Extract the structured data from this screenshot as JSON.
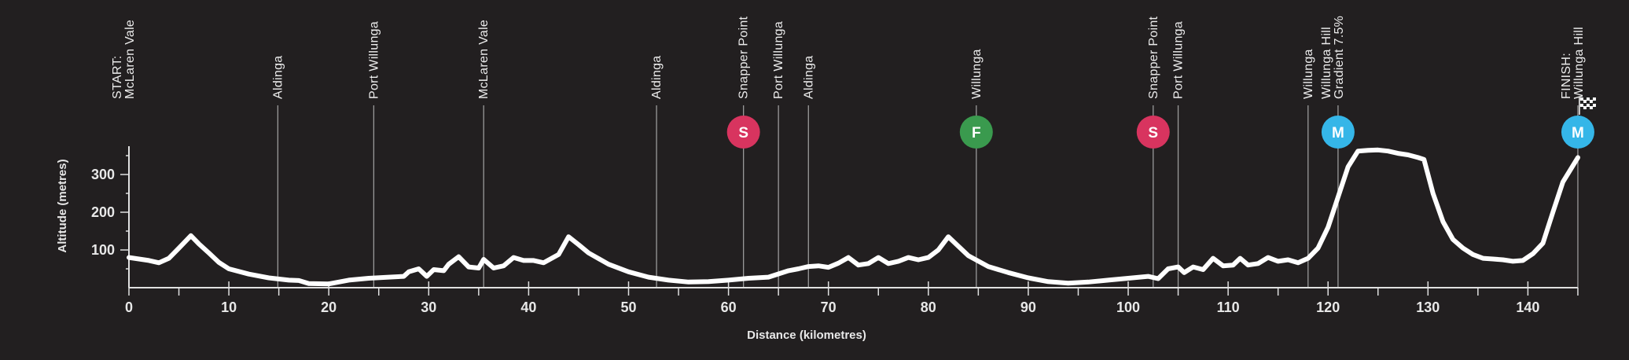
{
  "chart_data": {
    "type": "line",
    "title": "",
    "xlabel": "Distance (kilometres)",
    "ylabel": "Altitude (metres)",
    "xlim": [
      0,
      145
    ],
    "ylim": [
      0,
      375
    ],
    "x_ticks": [
      0,
      10,
      20,
      30,
      40,
      50,
      60,
      70,
      80,
      90,
      100,
      110,
      120,
      130,
      140
    ],
    "y_ticks": [
      100,
      200,
      300
    ],
    "grid": false,
    "colors": {
      "background": "#221f20",
      "line": "#ffffff",
      "axis": "#e0e0e0",
      "sprint": "#d8345f",
      "feed": "#3a9a4e",
      "mountain": "#35b6e8"
    },
    "profile": [
      [
        0,
        80
      ],
      [
        1,
        76
      ],
      [
        2,
        72
      ],
      [
        3,
        66
      ],
      [
        4,
        78
      ],
      [
        5,
        105
      ],
      [
        6.2,
        138
      ],
      [
        7,
        116
      ],
      [
        8,
        92
      ],
      [
        9,
        67
      ],
      [
        10,
        50
      ],
      [
        12,
        36
      ],
      [
        14,
        26
      ],
      [
        16,
        20
      ],
      [
        17,
        19
      ],
      [
        18,
        11
      ],
      [
        20,
        10
      ],
      [
        22,
        20
      ],
      [
        24,
        25
      ],
      [
        26,
        28
      ],
      [
        27.5,
        30
      ],
      [
        28,
        42
      ],
      [
        29,
        50
      ],
      [
        29.8,
        30
      ],
      [
        30.5,
        48
      ],
      [
        31.5,
        45
      ],
      [
        32,
        62
      ],
      [
        33,
        82
      ],
      [
        34,
        55
      ],
      [
        35,
        52
      ],
      [
        35.5,
        75
      ],
      [
        36.5,
        52
      ],
      [
        37.5,
        58
      ],
      [
        38.5,
        80
      ],
      [
        39.5,
        72
      ],
      [
        40.5,
        72
      ],
      [
        41.5,
        66
      ],
      [
        43,
        88
      ],
      [
        44,
        135
      ],
      [
        45,
        114
      ],
      [
        46,
        92
      ],
      [
        48,
        62
      ],
      [
        50,
        42
      ],
      [
        52,
        28
      ],
      [
        54,
        20
      ],
      [
        56,
        15
      ],
      [
        58,
        16
      ],
      [
        60,
        20
      ],
      [
        62,
        25
      ],
      [
        64,
        28
      ],
      [
        66,
        45
      ],
      [
        67,
        50
      ],
      [
        68,
        56
      ],
      [
        69,
        58
      ],
      [
        70,
        54
      ],
      [
        71,
        65
      ],
      [
        72,
        80
      ],
      [
        73,
        60
      ],
      [
        74,
        64
      ],
      [
        75,
        80
      ],
      [
        76,
        64
      ],
      [
        77,
        70
      ],
      [
        78,
        80
      ],
      [
        79,
        74
      ],
      [
        80,
        80
      ],
      [
        81,
        100
      ],
      [
        82,
        135
      ],
      [
        83,
        110
      ],
      [
        84,
        85
      ],
      [
        86,
        56
      ],
      [
        88,
        40
      ],
      [
        90,
        26
      ],
      [
        92,
        16
      ],
      [
        94,
        12
      ],
      [
        96,
        15
      ],
      [
        98,
        20
      ],
      [
        100,
        25
      ],
      [
        102,
        30
      ],
      [
        103,
        24
      ],
      [
        104,
        50
      ],
      [
        105,
        55
      ],
      [
        105.6,
        40
      ],
      [
        106.5,
        55
      ],
      [
        107.5,
        48
      ],
      [
        108.5,
        78
      ],
      [
        109.5,
        58
      ],
      [
        110.5,
        60
      ],
      [
        111.2,
        78
      ],
      [
        112,
        60
      ],
      [
        113,
        64
      ],
      [
        114,
        80
      ],
      [
        115,
        70
      ],
      [
        116,
        74
      ],
      [
        117,
        66
      ],
      [
        118,
        78
      ],
      [
        119,
        105
      ],
      [
        120,
        160
      ],
      [
        121,
        240
      ],
      [
        122,
        320
      ],
      [
        123,
        362
      ],
      [
        124,
        364
      ],
      [
        125,
        365
      ],
      [
        126,
        362
      ],
      [
        127,
        356
      ],
      [
        128,
        352
      ],
      [
        129,
        345
      ],
      [
        129.6,
        340
      ],
      [
        130.5,
        250
      ],
      [
        131.5,
        175
      ],
      [
        132.5,
        128
      ],
      [
        133.5,
        105
      ],
      [
        134.5,
        88
      ],
      [
        135.5,
        78
      ],
      [
        136.5,
        76
      ],
      [
        137.5,
        74
      ],
      [
        138.5,
        70
      ],
      [
        139.5,
        72
      ],
      [
        140.5,
        90
      ],
      [
        141.5,
        118
      ],
      [
        142.5,
        200
      ],
      [
        143.5,
        280
      ],
      [
        145,
        345
      ]
    ],
    "waypoints": [
      {
        "km": 0,
        "lines": [
          "START:",
          "McLaren Vale"
        ],
        "badge": ""
      },
      {
        "km": 14.9,
        "lines": [
          "Aldinga"
        ],
        "badge": ""
      },
      {
        "km": 24.5,
        "lines": [
          "Port Willunga"
        ],
        "badge": ""
      },
      {
        "km": 35.5,
        "lines": [
          "McLaren Vale"
        ],
        "badge": ""
      },
      {
        "km": 52.8,
        "lines": [
          "Aldinga"
        ],
        "badge": ""
      },
      {
        "km": 61.5,
        "lines": [
          "Snapper Point"
        ],
        "badge": "S"
      },
      {
        "km": 65,
        "lines": [
          "Port Willunga"
        ],
        "badge": ""
      },
      {
        "km": 68,
        "lines": [
          "Aldinga"
        ],
        "badge": ""
      },
      {
        "km": 84.8,
        "lines": [
          "Willunga"
        ],
        "badge": "F"
      },
      {
        "km": 102.5,
        "lines": [
          "Snapper Point"
        ],
        "badge": "S"
      },
      {
        "km": 105,
        "lines": [
          "Port Willunga"
        ],
        "badge": ""
      },
      {
        "km": 118,
        "lines": [
          "Willunga"
        ],
        "badge": ""
      },
      {
        "km": 121,
        "lines": [
          "Willunga Hill",
          "Gradient 7.5%"
        ],
        "badge": "M"
      },
      {
        "km": 145,
        "lines": [
          "FINISH:",
          "Willunga Hill"
        ],
        "badge": "M",
        "flag": true
      }
    ]
  }
}
